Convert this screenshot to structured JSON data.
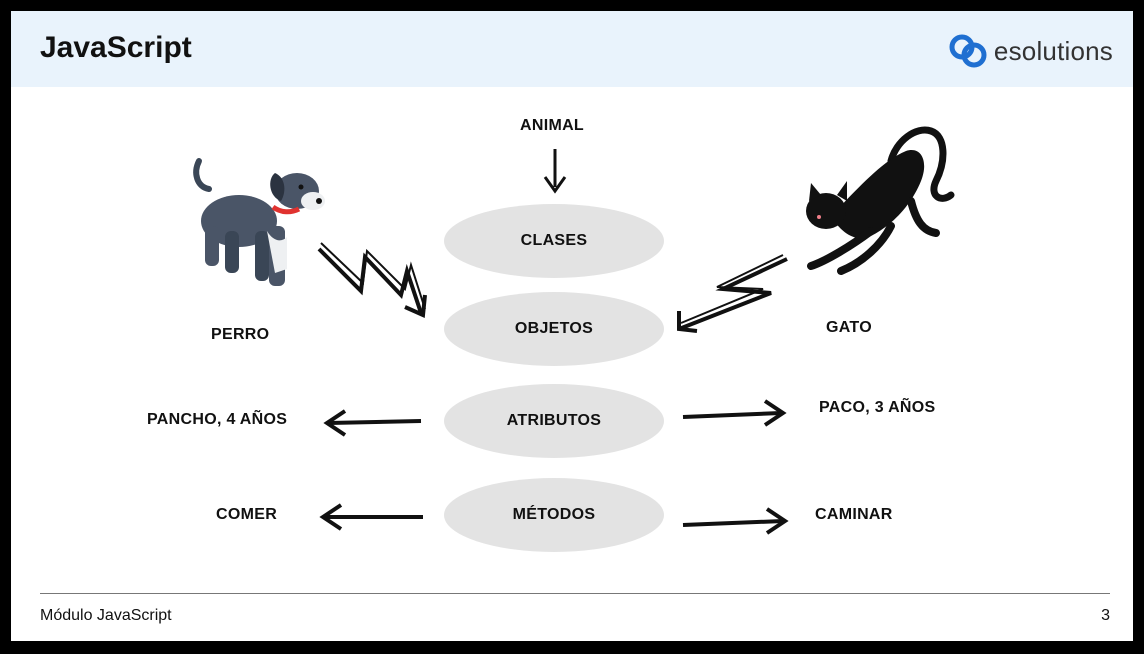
{
  "header": {
    "title": "JavaScript",
    "logo_text": "esolutions"
  },
  "diagram": {
    "top_label": "ANIMAL",
    "center_items": [
      "CLASES",
      "OBJETOS",
      "ATRIBUTOS",
      "MÉTODOS"
    ],
    "left": {
      "object": "PERRO",
      "attribute": "PANCHO, 4 AÑOS",
      "method": "COMER"
    },
    "right": {
      "object": "GATO",
      "attribute": "PACO, 3 AÑOS",
      "method": "CAMINAR"
    }
  },
  "footer": {
    "module": "Módulo JavaScript",
    "page": "3"
  },
  "colors": {
    "header_bg": "#e9f3fc",
    "logo_blue": "#1f6fd1",
    "ellipse": "#e3e3e3"
  }
}
